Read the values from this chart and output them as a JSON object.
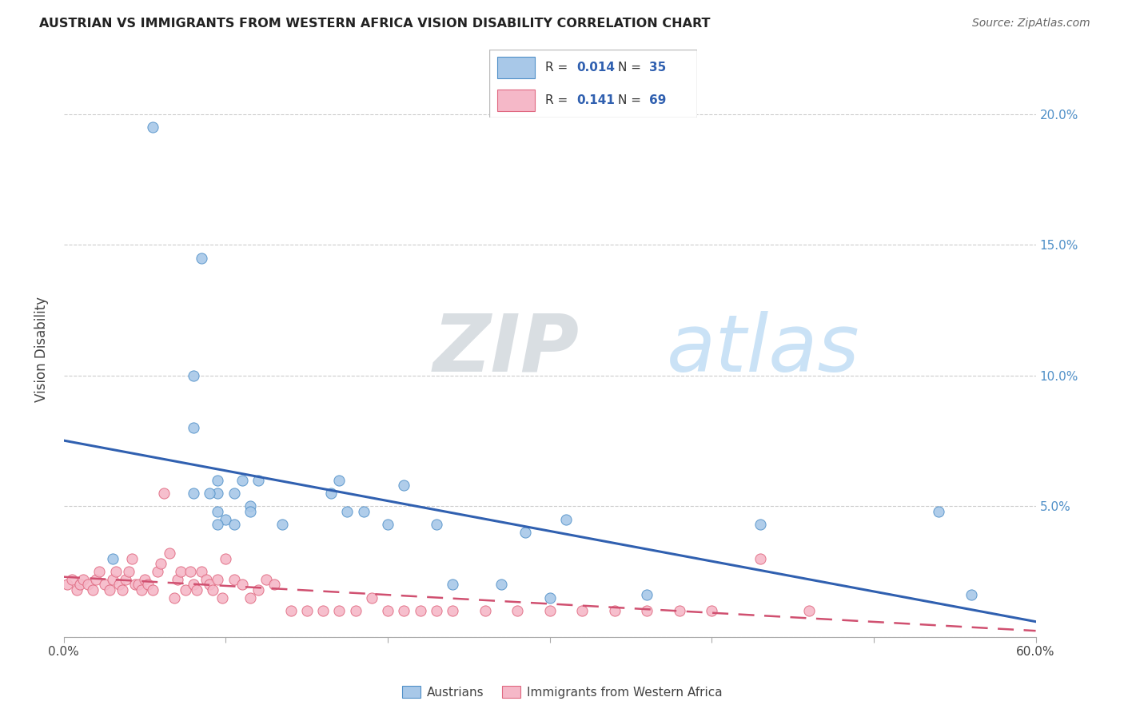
{
  "title": "AUSTRIAN VS IMMIGRANTS FROM WESTERN AFRICA VISION DISABILITY CORRELATION CHART",
  "source": "Source: ZipAtlas.com",
  "ylabel": "Vision Disability",
  "xlim": [
    0.0,
    0.6
  ],
  "ylim": [
    0.0,
    0.22
  ],
  "legend_R1": "0.014",
  "legend_N1": "35",
  "legend_R2": "0.141",
  "legend_N2": "69",
  "blue_fill": "#a8c8e8",
  "blue_edge": "#5090c8",
  "pink_fill": "#f5b8c8",
  "pink_edge": "#e06880",
  "line_blue_color": "#3060b0",
  "line_pink_color": "#d05070",
  "watermark_color": "#c8dff0",
  "grid_color": "#cccccc",
  "right_tick_color": "#5090c8",
  "background": "#ffffff",
  "scatter_blue_x": [
    0.03,
    0.055,
    0.085,
    0.08,
    0.08,
    0.095,
    0.095,
    0.1,
    0.105,
    0.11,
    0.08,
    0.09,
    0.095,
    0.095,
    0.105,
    0.115,
    0.12,
    0.115,
    0.135,
    0.17,
    0.165,
    0.175,
    0.185,
    0.2,
    0.21,
    0.23,
    0.24,
    0.27,
    0.285,
    0.3,
    0.31,
    0.36,
    0.43,
    0.54,
    0.56
  ],
  "scatter_blue_y": [
    0.03,
    0.195,
    0.145,
    0.1,
    0.08,
    0.06,
    0.055,
    0.045,
    0.055,
    0.06,
    0.055,
    0.055,
    0.048,
    0.043,
    0.043,
    0.05,
    0.06,
    0.048,
    0.043,
    0.06,
    0.055,
    0.048,
    0.048,
    0.043,
    0.058,
    0.043,
    0.02,
    0.02,
    0.04,
    0.015,
    0.045,
    0.016,
    0.043,
    0.048,
    0.016
  ],
  "scatter_pink_x": [
    0.002,
    0.005,
    0.008,
    0.01,
    0.012,
    0.015,
    0.018,
    0.02,
    0.022,
    0.025,
    0.028,
    0.03,
    0.032,
    0.034,
    0.036,
    0.038,
    0.04,
    0.042,
    0.044,
    0.046,
    0.048,
    0.05,
    0.052,
    0.055,
    0.058,
    0.06,
    0.062,
    0.065,
    0.068,
    0.07,
    0.072,
    0.075,
    0.078,
    0.08,
    0.082,
    0.085,
    0.088,
    0.09,
    0.092,
    0.095,
    0.098,
    0.1,
    0.105,
    0.11,
    0.115,
    0.12,
    0.125,
    0.13,
    0.14,
    0.15,
    0.16,
    0.17,
    0.18,
    0.19,
    0.2,
    0.21,
    0.22,
    0.23,
    0.24,
    0.26,
    0.28,
    0.3,
    0.32,
    0.34,
    0.36,
    0.38,
    0.4,
    0.43,
    0.46
  ],
  "scatter_pink_y": [
    0.02,
    0.022,
    0.018,
    0.02,
    0.022,
    0.02,
    0.018,
    0.022,
    0.025,
    0.02,
    0.018,
    0.022,
    0.025,
    0.02,
    0.018,
    0.022,
    0.025,
    0.03,
    0.02,
    0.02,
    0.018,
    0.022,
    0.02,
    0.018,
    0.025,
    0.028,
    0.055,
    0.032,
    0.015,
    0.022,
    0.025,
    0.018,
    0.025,
    0.02,
    0.018,
    0.025,
    0.022,
    0.02,
    0.018,
    0.022,
    0.015,
    0.03,
    0.022,
    0.02,
    0.015,
    0.018,
    0.022,
    0.02,
    0.01,
    0.01,
    0.01,
    0.01,
    0.01,
    0.015,
    0.01,
    0.01,
    0.01,
    0.01,
    0.01,
    0.01,
    0.01,
    0.01,
    0.01,
    0.01,
    0.01,
    0.01,
    0.01,
    0.03,
    0.01
  ]
}
